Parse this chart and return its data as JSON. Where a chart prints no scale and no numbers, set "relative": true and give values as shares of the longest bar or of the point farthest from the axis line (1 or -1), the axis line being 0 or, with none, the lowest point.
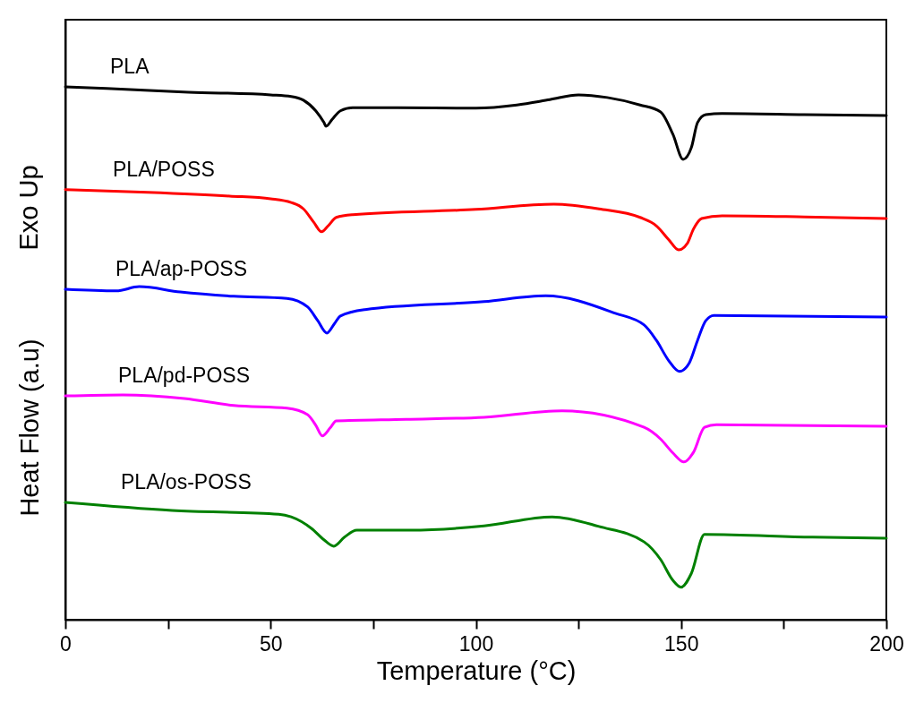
{
  "chart_data": {
    "type": "line",
    "relative": true,
    "xlabel": "Temperature (°C)",
    "ylabel": "Heat Flow (a.u)",
    "annotations": [
      "Exo Up"
    ],
    "xlim": [
      0,
      200
    ],
    "xticks": [
      0,
      {
        "value": 25,
        "label": null
      },
      50,
      {
        "value": 75,
        "label": null
      },
      100,
      {
        "value": 125,
        "label": null
      },
      150,
      {
        "value": 175,
        "label": null
      },
      200
    ],
    "line_style": "solid",
    "marker": "none",
    "series": [
      {
        "name": "PLA",
        "color": "#000000",
        "x": [
          0,
          10,
          30,
          50,
          55,
          58,
          61,
          63,
          63.5,
          65,
          67,
          70,
          80,
          100,
          110,
          118,
          125,
          132,
          140,
          145,
          148,
          150.5,
          152.5,
          154,
          156,
          160,
          180,
          200
        ],
        "values": [
          1.0,
          0.997,
          0.99,
          0.985,
          0.982,
          0.975,
          0.955,
          0.933,
          0.926,
          0.939,
          0.955,
          0.961,
          0.961,
          0.96,
          0.966,
          0.976,
          0.985,
          0.98,
          0.966,
          0.953,
          0.911,
          0.864,
          0.886,
          0.933,
          0.948,
          0.95,
          0.948,
          0.946
        ]
      },
      {
        "name": "PLA/POSS",
        "color": "#ff0000",
        "x": [
          0,
          20,
          40,
          50,
          55,
          58,
          60.5,
          62.4,
          64,
          66,
          70,
          100,
          119,
          130,
          140,
          144,
          147,
          149.4,
          151.5,
          153,
          155,
          160,
          180,
          200
        ],
        "values": [
          0.807,
          0.802,
          0.795,
          0.79,
          0.783,
          0.771,
          0.746,
          0.728,
          0.739,
          0.755,
          0.76,
          0.77,
          0.78,
          0.771,
          0.755,
          0.739,
          0.713,
          0.694,
          0.706,
          0.733,
          0.753,
          0.758,
          0.756,
          0.753
        ]
      },
      {
        "name": "PLA/ap-POSS",
        "color": "#0000ff",
        "x": [
          0,
          12.4,
          18,
          28,
          41,
          54,
          59,
          61.5,
          63.7,
          65.5,
          67,
          73,
          102,
          117,
          134,
          141,
          144,
          147,
          149.6,
          152,
          154,
          156,
          158,
          200
        ],
        "values": [
          0.62,
          0.617,
          0.625,
          0.615,
          0.607,
          0.603,
          0.587,
          0.561,
          0.538,
          0.555,
          0.57,
          0.582,
          0.597,
          0.608,
          0.575,
          0.553,
          0.524,
          0.486,
          0.466,
          0.482,
          0.524,
          0.561,
          0.571,
          0.568
        ]
      },
      {
        "name": "PLA/pd-POSS",
        "color": "#ff00ff",
        "x": [
          0,
          14,
          29,
          41,
          54,
          59,
          61,
          62.6,
          64.5,
          66,
          83,
          102,
          121,
          141,
          145,
          148,
          150.7,
          153,
          155.7,
          158.6,
          200
        ],
        "values": [
          0.42,
          0.422,
          0.415,
          0.402,
          0.397,
          0.385,
          0.365,
          0.345,
          0.36,
          0.373,
          0.376,
          0.38,
          0.392,
          0.361,
          0.339,
          0.313,
          0.296,
          0.314,
          0.361,
          0.366,
          0.363
        ]
      },
      {
        "name": "PLA/os-POSS",
        "color": "#008000",
        "x": [
          0,
          26,
          52,
          55,
          60,
          63,
          65.4,
          68,
          71,
          84,
          102,
          118.6,
          130,
          141,
          145,
          148,
          150,
          152.5,
          155.7,
          182,
          200
        ],
        "values": [
          0.22,
          0.205,
          0.198,
          0.193,
          0.171,
          0.15,
          0.138,
          0.155,
          0.168,
          0.168,
          0.176,
          0.193,
          0.175,
          0.146,
          0.113,
          0.074,
          0.061,
          0.087,
          0.16,
          0.155,
          0.153
        ]
      }
    ]
  }
}
